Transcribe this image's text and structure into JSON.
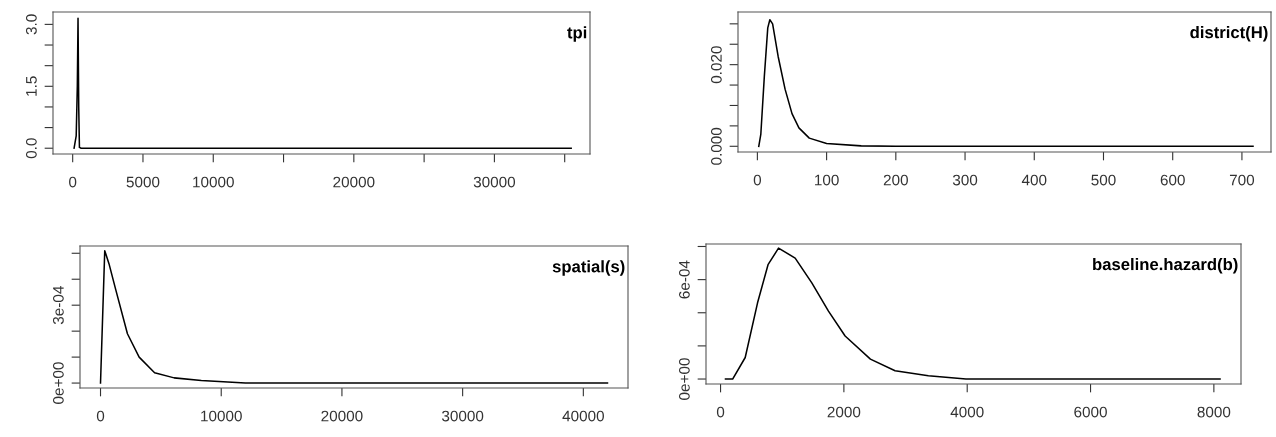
{
  "chart_data": [
    {
      "type": "line",
      "title": "tpi",
      "x": [
        100,
        250,
        330,
        380,
        430,
        480,
        600,
        35460
      ],
      "series": [
        {
          "color": "#000000",
          "values": [
            0,
            0.3,
            1.5,
            3.15,
            1.0,
            0.02,
            0,
            0
          ]
        }
      ],
      "xlim": [
        -1400,
        36800
      ],
      "ylim": [
        -0.14,
        3.3
      ],
      "xticks": [
        0,
        5000,
        10000,
        {
          "value": 15000,
          "label": null
        },
        20000,
        {
          "value": 25000,
          "label": null
        },
        30000,
        {
          "value": 35000,
          "label": null
        }
      ],
      "yticks": [
        {
          "value": 0,
          "label": "0.0"
        },
        {
          "value": 0.5,
          "label": null
        },
        {
          "value": 1.0,
          "label": null
        },
        1.5,
        {
          "value": 2.0,
          "label": null
        },
        {
          "value": 2.5,
          "label": null
        },
        {
          "value": 3.0,
          "label": "3.0"
        }
      ],
      "grid": false,
      "legend": false
    },
    {
      "type": "line",
      "title": "district(H)",
      "x": [
        2,
        5,
        10,
        15,
        18,
        22,
        30,
        40,
        50,
        60,
        75,
        100,
        150,
        200,
        716
      ],
      "series": [
        {
          "color": "#000000",
          "values": [
            0,
            0.003,
            0.017,
            0.029,
            0.031,
            0.03,
            0.022,
            0.014,
            0.008,
            0.0045,
            0.002,
            0.0007,
            0.0001,
            0,
            0
          ]
        }
      ],
      "xlim": [
        -28,
        742
      ],
      "ylim": [
        -0.0014,
        0.0329
      ],
      "xticks": [
        0,
        100,
        200,
        300,
        400,
        500,
        600,
        700
      ],
      "yticks": [
        {
          "value": 0,
          "label": "0.000"
        },
        {
          "value": 0.005,
          "label": null
        },
        {
          "value": 0.01,
          "label": null
        },
        {
          "value": 0.015,
          "label": null
        },
        {
          "value": 0.02,
          "label": "0.020"
        },
        {
          "value": 0.025,
          "label": null
        },
        {
          "value": 0.03,
          "label": null
        }
      ],
      "grid": false,
      "legend": false
    },
    {
      "type": "line",
      "title": "spatial(s)",
      "x": [
        0,
        350,
        700,
        1260,
        2230,
        3200,
        4480,
        6100,
        8350,
        12000,
        20000,
        42000
      ],
      "series": [
        {
          "color": "#000000",
          "values": [
            0,
            0.00051,
            0.00046,
            0.00036,
            0.00019,
            0.0001,
            4e-05,
            2e-05,
            1e-05,
            0,
            0,
            0
          ]
        }
      ],
      "xlim": [
        -1700,
        43700
      ],
      "ylim": [
        -1.9e-05,
        0.000528
      ],
      "xticks": [
        0,
        10000,
        20000,
        30000,
        40000
      ],
      "yticks": [
        {
          "value": 0,
          "label": "0e+00"
        },
        {
          "value": 0.0001,
          "label": null
        },
        {
          "value": 0.0002,
          "label": null
        },
        {
          "value": 0.0003,
          "label": "3e-04"
        },
        {
          "value": 0.0004,
          "label": null
        },
        {
          "value": 0.0005,
          "label": null
        }
      ],
      "grid": false,
      "legend": false
    },
    {
      "type": "line",
      "title": "baseline.hazard(b)",
      "x": [
        80,
        196,
        400,
        600,
        770,
        940,
        1210,
        1480,
        1750,
        2020,
        2430,
        2830,
        3370,
        3980,
        8100
      ],
      "series": [
        {
          "color": "#000000",
          "values": [
            0,
            0,
            0.00013,
            0.00046,
            0.00069,
            0.00079,
            0.00073,
            0.00058,
            0.00041,
            0.00026,
            0.00012,
            5e-05,
            2e-05,
            0,
            0
          ]
        }
      ],
      "xlim": [
        -236,
        8440
      ],
      "ylim": [
        -3e-05,
        0.000815
      ],
      "xticks": [
        0,
        2000,
        4000,
        6000,
        8000
      ],
      "yticks": [
        {
          "value": 0,
          "label": "0e+00"
        },
        {
          "value": 0.0002,
          "label": null
        },
        {
          "value": 0.0004,
          "label": null
        },
        {
          "value": 0.0006,
          "label": "6e-04"
        },
        {
          "value": 0.0008,
          "label": null
        }
      ],
      "grid": false,
      "legend": false
    }
  ]
}
